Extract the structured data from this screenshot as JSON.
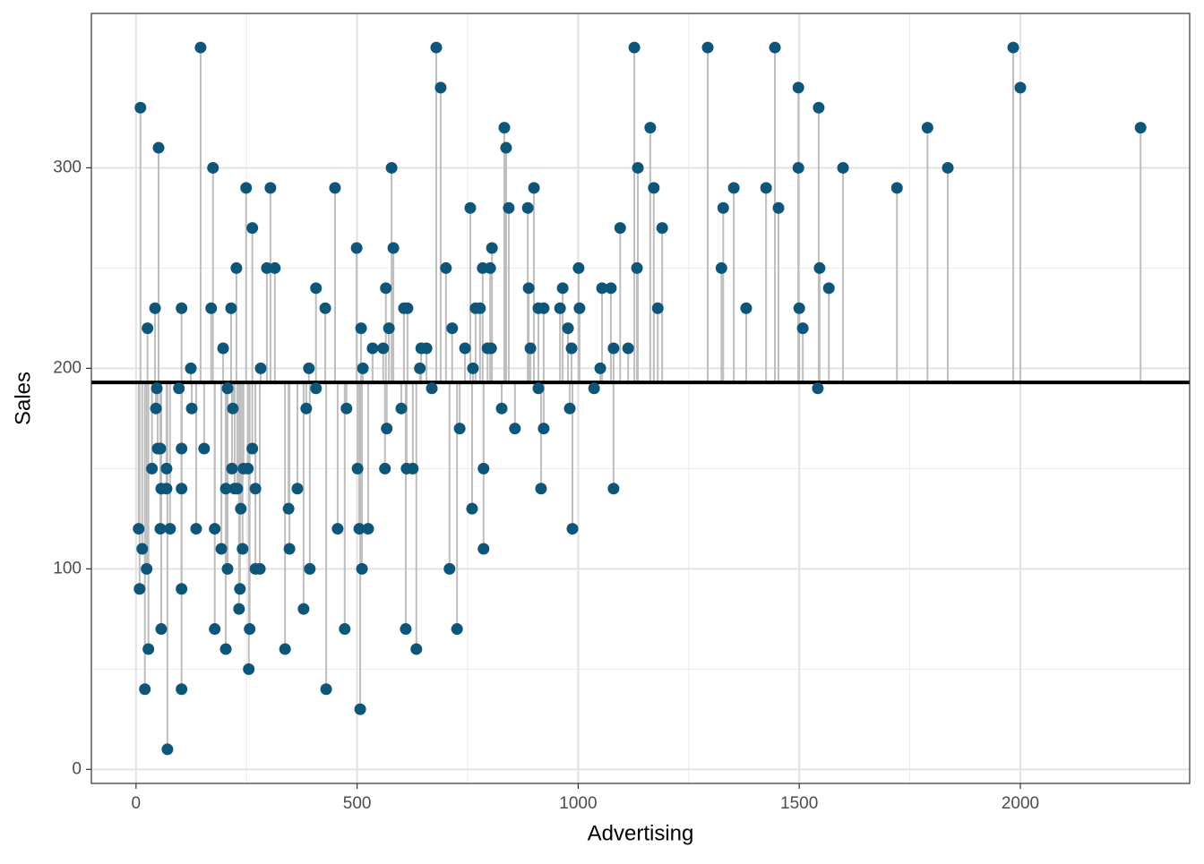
{
  "chart_data": {
    "type": "scatter",
    "xlabel": "Advertising",
    "ylabel": "Sales",
    "xlim": [
      -101,
      2383
    ],
    "ylim": [
      -7,
      377
    ],
    "xticks": [
      0,
      500,
      1000,
      1500,
      2000
    ],
    "yticks": [
      0,
      100,
      200,
      300
    ],
    "grid": true,
    "reference_line": 193,
    "reference_color": "#000000",
    "color": "#0d5679",
    "stem_color": "#bebebe",
    "x": [
      10,
      6,
      8,
      14,
      20,
      26,
      24,
      28,
      36,
      43,
      47,
      45,
      51,
      49,
      55,
      57,
      55,
      57,
      69,
      69,
      71,
      77,
      97,
      103,
      103,
      103,
      103,
      103,
      124,
      126,
      136,
      146,
      154,
      170,
      174,
      178,
      178,
      193,
      197,
      203,
      203,
      207,
      207,
      215,
      219,
      217,
      223,
      227,
      229,
      233,
      235,
      237,
      241,
      243,
      249,
      253,
      255,
      257,
      263,
      263,
      270,
      270,
      280,
      282,
      296,
      304,
      314,
      337,
      345,
      347,
      365,
      379,
      385,
      391,
      393,
      407,
      407,
      428,
      430,
      450,
      456,
      472,
      476,
      499,
      501,
      505,
      507,
      509,
      511,
      513,
      525,
      535,
      559,
      563,
      565,
      567,
      572,
      578,
      582,
      600,
      606,
      610,
      612,
      614,
      626,
      634,
      642,
      645,
      657,
      669,
      679,
      689,
      701,
      709,
      715,
      726,
      732,
      744,
      756,
      760,
      762,
      768,
      778,
      784,
      786,
      786,
      795,
      801,
      805,
      803,
      827,
      833,
      837,
      843,
      857,
      886,
      888,
      892,
      900,
      910,
      910,
      916,
      922,
      922,
      959,
      965,
      977,
      981,
      985,
      987,
      1001,
      1003,
      1036,
      1050,
      1054,
      1074,
      1080,
      1080,
      1095,
      1113,
      1127,
      1133,
      1135,
      1163,
      1171,
      1180,
      1190,
      1293,
      1324,
      1328,
      1352,
      1380,
      1425,
      1445,
      1453,
      1498,
      1498,
      1500,
      1508,
      1542,
      1544,
      1546,
      1567,
      1599,
      1721,
      1790,
      1836,
      1984,
      2000,
      2272
    ],
    "y": [
      330,
      120,
      90,
      110,
      40,
      220,
      100,
      60,
      150,
      230,
      190,
      180,
      310,
      160,
      160,
      140,
      120,
      70,
      150,
      140,
      10,
      120,
      190,
      230,
      140,
      160,
      90,
      40,
      200,
      180,
      120,
      360,
      160,
      230,
      300,
      120,
      70,
      110,
      210,
      60,
      140,
      100,
      190,
      230,
      180,
      150,
      140,
      250,
      140,
      80,
      90,
      130,
      110,
      150,
      290,
      150,
      50,
      70,
      270,
      160,
      140,
      100,
      100,
      200,
      250,
      290,
      250,
      60,
      130,
      110,
      140,
      80,
      180,
      200,
      100,
      190,
      240,
      230,
      40,
      290,
      120,
      70,
      180,
      260,
      150,
      120,
      30,
      220,
      100,
      200,
      120,
      210,
      210,
      150,
      240,
      170,
      220,
      300,
      260,
      180,
      230,
      70,
      150,
      230,
      150,
      60,
      200,
      210,
      210,
      190,
      360,
      340,
      250,
      100,
      220,
      70,
      170,
      210,
      280,
      130,
      200,
      230,
      230,
      250,
      110,
      150,
      210,
      250,
      260,
      210,
      180,
      320,
      310,
      280,
      170,
      280,
      240,
      210,
      290,
      190,
      230,
      140,
      170,
      230,
      230,
      240,
      220,
      180,
      210,
      120,
      250,
      230,
      190,
      200,
      240,
      240,
      140,
      210,
      270,
      210,
      360,
      250,
      300,
      320,
      290,
      230,
      270,
      360,
      250,
      280,
      290,
      230,
      290,
      360,
      280,
      340,
      300,
      230,
      220,
      190,
      330,
      250,
      240,
      300,
      290,
      320,
      300,
      360,
      340,
      320
    ]
  }
}
